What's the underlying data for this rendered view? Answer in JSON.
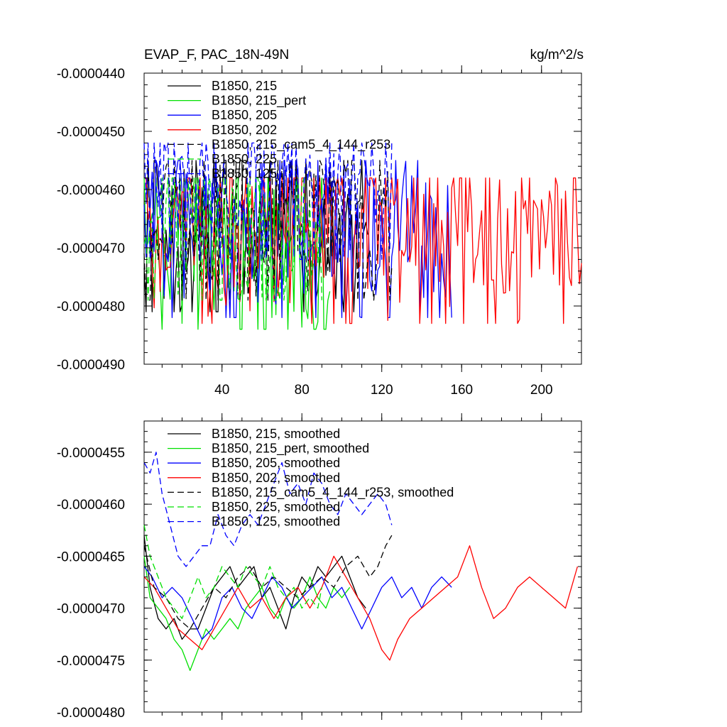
{
  "chart_data": [
    {
      "type": "line",
      "title_left": "EVAP_F, PAC_18N-49N",
      "title_right": "kg/m^2/s",
      "xlim": [
        1,
        220
      ],
      "ylim": [
        -4.9e-05,
        -4.4e-05
      ],
      "x_ticks": [
        40,
        80,
        120,
        160,
        200
      ],
      "x_tick_labels": [
        "40",
        "80",
        "120",
        "160",
        "200"
      ],
      "y_ticks": [
        -4.4e-05,
        -4.5e-05,
        -4.6e-05,
        -4.7e-05,
        -4.8e-05,
        -4.9e-05
      ],
      "y_tick_labels": [
        "-0.0000440",
        "-0.0000450",
        "-0.0000460",
        "-0.0000470",
        "-0.0000480",
        "-0.0000490"
      ],
      "legend": [
        "B1850, 215",
        "B1850, 215_pert",
        "B1850, 205",
        "B1850, 202",
        "B1850, 215_cam5_4_144_r253",
        "B1850, 225",
        "B1850, 125"
      ],
      "series": [
        {
          "name": "B1850, 215",
          "color": "#000000",
          "dash": "",
          "length": 113,
          "mean": -4.68e-05,
          "amp": 1.7e-06,
          "peak": -4.55e-05,
          "trough": -4.81e-05
        },
        {
          "name": "B1850, 215_pert",
          "color": "#00e000",
          "dash": "",
          "length": 94,
          "mean": -4.7e-05,
          "amp": 1.8e-06,
          "peak": -4.58e-05,
          "trough": -4.84e-05
        },
        {
          "name": "B1850, 205",
          "color": "#0000ff",
          "dash": "",
          "length": 155,
          "mean": -4.67e-05,
          "amp": 1.7e-06,
          "peak": -4.55e-05,
          "trough": -4.82e-05
        },
        {
          "name": "B1850, 202",
          "color": "#ff0000",
          "dash": "",
          "length": 220,
          "mean": -4.67e-05,
          "amp": 1.8e-06,
          "peak": -4.58e-05,
          "trough": -4.83e-05
        },
        {
          "name": "B1850, 215_cam5_4_144_r253",
          "color": "#000000",
          "dash": "9,5",
          "length": 125,
          "mean": -4.66e-05,
          "amp": 1.6e-06,
          "peak": -4.55e-05,
          "trough": -4.79e-05
        },
        {
          "name": "B1850, 225",
          "color": "#00e000",
          "dash": "9,5",
          "length": 90,
          "mean": -4.69e-05,
          "amp": 1.5e-06,
          "peak": -4.58e-05,
          "trough": -4.79e-05
        },
        {
          "name": "B1850, 125",
          "color": "#0000ff",
          "dash": "9,5",
          "length": 125,
          "mean": -4.59e-05,
          "amp": 1.7e-06,
          "peak": -4.52e-05,
          "trough": -4.72e-05
        }
      ]
    },
    {
      "type": "line",
      "xlim": [
        1,
        220
      ],
      "ylim": [
        -4.8e-05,
        -4.52e-05
      ],
      "x_ticks": [
        40,
        80,
        120,
        160,
        200
      ],
      "y_ticks": [
        -4.55e-05,
        -4.6e-05,
        -4.65e-05,
        -4.7e-05,
        -4.75e-05,
        -4.8e-05
      ],
      "y_tick_labels": [
        "-0.0000455",
        "-0.0000460",
        "-0.0000465",
        "-0.0000470",
        "-0.0000475",
        "-0.0000480"
      ],
      "legend": [
        "B1850, 215, smoothed",
        "B1850, 215_pert, smoothed",
        "B1850, 205, smoothed",
        "B1850, 202, smoothed",
        "B1850, 215_cam5_4_144_r253, smoothed",
        "B1850, 225, smoothed",
        "B1850, 125, smoothed"
      ],
      "series": [
        {
          "name": "B1850, 215, smoothed",
          "color": "#000000",
          "dash": "",
          "x": [
            1,
            4,
            8,
            12,
            16,
            20,
            24,
            28,
            32,
            36,
            40,
            44,
            48,
            52,
            56,
            60,
            64,
            68,
            72,
            76,
            80,
            84,
            88,
            92,
            96,
            100,
            104,
            108,
            112
          ],
          "y": [
            -4.63e-05,
            -4.68e-05,
            -4.71e-05,
            -4.72e-05,
            -4.71e-05,
            -4.73e-05,
            -4.72e-05,
            -4.72e-05,
            -4.7e-05,
            -4.68e-05,
            -4.67e-05,
            -4.66e-05,
            -4.68e-05,
            -4.67e-05,
            -4.66e-05,
            -4.69e-05,
            -4.68e-05,
            -4.7e-05,
            -4.72e-05,
            -4.69e-05,
            -4.67e-05,
            -4.68e-05,
            -4.66e-05,
            -4.67e-05,
            -4.66e-05,
            -4.65e-05,
            -4.67e-05,
            -4.69e-05,
            -4.7e-05
          ]
        },
        {
          "name": "B1850, 215_pert, smoothed",
          "color": "#00e000",
          "dash": "",
          "x": [
            1,
            4,
            8,
            12,
            16,
            20,
            24,
            28,
            32,
            36,
            40,
            44,
            48,
            52,
            56,
            60,
            64,
            68,
            72,
            76,
            80,
            84,
            88,
            92,
            96,
            100,
            104
          ],
          "y": [
            -4.65e-05,
            -4.69e-05,
            -4.7e-05,
            -4.71e-05,
            -4.73e-05,
            -4.74e-05,
            -4.76e-05,
            -4.74e-05,
            -4.72e-05,
            -4.73e-05,
            -4.72e-05,
            -4.71e-05,
            -4.72e-05,
            -4.7e-05,
            -4.69e-05,
            -4.68e-05,
            -4.7e-05,
            -4.71e-05,
            -4.69e-05,
            -4.7e-05,
            -4.69e-05,
            -4.67e-05,
            -4.69e-05,
            -4.7e-05,
            -4.68e-05,
            -4.69e-05,
            -4.68e-05
          ]
        },
        {
          "name": "B1850, 205, smoothed",
          "color": "#0000ff",
          "dash": "",
          "x": [
            1,
            5,
            10,
            15,
            20,
            25,
            30,
            35,
            40,
            45,
            50,
            55,
            60,
            65,
            70,
            75,
            80,
            85,
            90,
            95,
            100,
            105,
            110,
            115,
            120,
            125,
            130,
            135,
            140,
            145,
            150,
            155
          ],
          "y": [
            -4.66e-05,
            -4.67e-05,
            -4.69e-05,
            -4.68e-05,
            -4.69e-05,
            -4.71e-05,
            -4.73e-05,
            -4.72e-05,
            -4.69e-05,
            -4.68e-05,
            -4.7e-05,
            -4.71e-05,
            -4.69e-05,
            -4.67e-05,
            -4.68e-05,
            -4.7e-05,
            -4.69e-05,
            -4.68e-05,
            -4.67e-05,
            -4.69e-05,
            -4.68e-05,
            -4.7e-05,
            -4.72e-05,
            -4.7e-05,
            -4.68e-05,
            -4.67e-05,
            -4.69e-05,
            -4.68e-05,
            -4.7e-05,
            -4.68e-05,
            -4.67e-05,
            -4.68e-05
          ]
        },
        {
          "name": "B1850, 202, smoothed",
          "color": "#ff0000",
          "dash": "",
          "x": [
            1,
            6,
            12,
            18,
            24,
            30,
            36,
            42,
            48,
            54,
            60,
            66,
            72,
            78,
            84,
            90,
            96,
            102,
            108,
            114,
            120,
            124,
            128,
            134,
            140,
            146,
            152,
            158,
            164,
            170,
            176,
            182,
            188,
            194,
            200,
            206,
            212,
            218
          ],
          "y": [
            -4.67e-05,
            -4.68e-05,
            -4.7e-05,
            -4.72e-05,
            -4.73e-05,
            -4.74e-05,
            -4.72e-05,
            -4.7e-05,
            -4.68e-05,
            -4.7e-05,
            -4.69e-05,
            -4.71e-05,
            -4.69e-05,
            -4.68e-05,
            -4.7e-05,
            -4.68e-05,
            -4.65e-05,
            -4.67e-05,
            -4.69e-05,
            -4.71e-05,
            -4.74e-05,
            -4.75e-05,
            -4.73e-05,
            -4.71e-05,
            -4.7e-05,
            -4.69e-05,
            -4.68e-05,
            -4.67e-05,
            -4.64e-05,
            -4.68e-05,
            -4.71e-05,
            -4.7e-05,
            -4.68e-05,
            -4.67e-05,
            -4.68e-05,
            -4.69e-05,
            -4.7e-05,
            -4.66e-05
          ]
        },
        {
          "name": "B1850, 215_cam5_4_144_r253, smoothed",
          "color": "#000000",
          "dash": "9,5",
          "x": [
            1,
            6,
            12,
            18,
            24,
            30,
            36,
            42,
            48,
            54,
            60,
            66,
            72,
            78,
            84,
            90,
            96,
            102,
            108,
            114,
            118,
            122,
            125
          ],
          "y": [
            -4.64e-05,
            -4.68e-05,
            -4.69e-05,
            -4.71e-05,
            -4.72e-05,
            -4.7e-05,
            -4.68e-05,
            -4.69e-05,
            -4.67e-05,
            -4.66e-05,
            -4.68e-05,
            -4.67e-05,
            -4.68e-05,
            -4.69e-05,
            -4.68e-05,
            -4.67e-05,
            -4.68e-05,
            -4.66e-05,
            -4.65e-05,
            -4.67e-05,
            -4.66e-05,
            -4.64e-05,
            -4.63e-05
          ]
        },
        {
          "name": "B1850, 225, smoothed",
          "color": "#00e000",
          "dash": "9,5",
          "x": [
            1,
            4,
            8,
            12,
            16,
            20,
            24,
            28,
            32,
            36,
            40,
            44,
            48,
            52,
            56,
            60,
            64,
            68,
            72,
            76,
            80,
            84,
            88,
            90
          ],
          "y": [
            -4.62e-05,
            -4.65e-05,
            -4.67e-05,
            -4.69e-05,
            -4.7e-05,
            -4.71e-05,
            -4.69e-05,
            -4.67e-05,
            -4.69e-05,
            -4.68e-05,
            -4.66e-05,
            -4.67e-05,
            -4.68e-05,
            -4.66e-05,
            -4.67e-05,
            -4.68e-05,
            -4.66e-05,
            -4.68e-05,
            -4.69e-05,
            -4.68e-05,
            -4.7e-05,
            -4.69e-05,
            -4.7e-05,
            -4.68e-05
          ]
        },
        {
          "name": "B1850, 125, smoothed",
          "color": "#0000ff",
          "dash": "9,5",
          "x": [
            1,
            4,
            7,
            10,
            14,
            18,
            22,
            26,
            30,
            34,
            38,
            42,
            46,
            50,
            54,
            58,
            62,
            66,
            70,
            74,
            78,
            82,
            86,
            90,
            94,
            98,
            102,
            106,
            110,
            114,
            118,
            122,
            125
          ],
          "y": [
            -4.56e-05,
            -4.57e-05,
            -4.55e-05,
            -4.59e-05,
            -4.62e-05,
            -4.65e-05,
            -4.66e-05,
            -4.65e-05,
            -4.64e-05,
            -4.64e-05,
            -4.61e-05,
            -4.63e-05,
            -4.64e-05,
            -4.62e-05,
            -4.61e-05,
            -4.62e-05,
            -4.6e-05,
            -4.58e-05,
            -4.56e-05,
            -4.59e-05,
            -4.58e-05,
            -4.6e-05,
            -4.57e-05,
            -4.58e-05,
            -4.6e-05,
            -4.61e-05,
            -4.59e-05,
            -4.6e-05,
            -4.61e-05,
            -4.6e-05,
            -4.59e-05,
            -4.6e-05,
            -4.62e-05
          ]
        }
      ]
    }
  ]
}
